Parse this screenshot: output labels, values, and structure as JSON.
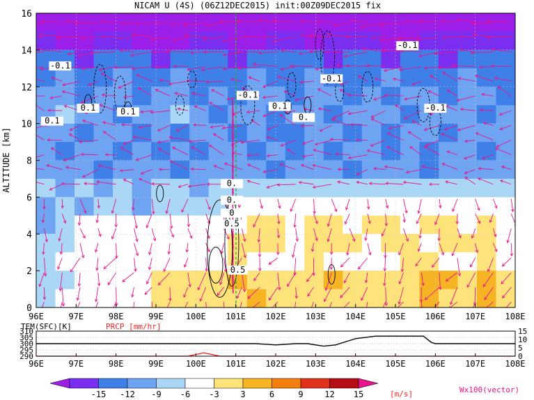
{
  "title": "NICAM U (4S) (06Z12DEC2015) init:00Z09DEC2015 fix",
  "chart_data": [
    {
      "type": "heatmap",
      "panel": "cross-section",
      "variable": "U",
      "ylabel": "ALTITUDE [km]",
      "xlabel": "",
      "x_ticks": [
        "96E",
        "97E",
        "98E",
        "99E",
        "100E",
        "101E",
        "102E",
        "103E",
        "104E",
        "105E",
        "106E",
        "107E",
        "108E"
      ],
      "y_ticks": [
        "0",
        "2",
        "4",
        "6",
        "8",
        "10",
        "12",
        "14",
        "16"
      ],
      "xlim": [
        96,
        108
      ],
      "ylim": [
        0,
        16
      ],
      "vertical_marker_lon": 100.9,
      "contour_labels": [
        "-0.1",
        "-0.1",
        "-0.1",
        "-0.1",
        "0.1",
        "0.1",
        "0.1",
        "0.1",
        "-0.1",
        "0.",
        "0.",
        "0.",
        "0",
        "0.5"
      ],
      "field_rows": [
        {
          "alt": 15.5,
          "values": [
            -15,
            -15,
            -15,
            -15,
            -15,
            -15,
            -15,
            -15,
            -15,
            -15,
            -15,
            -15,
            -15,
            -15,
            -15,
            -15,
            -15,
            -15,
            -15,
            -15,
            -15,
            -15,
            -15,
            -15,
            -15
          ]
        },
        {
          "alt": 14.5,
          "values": [
            -12,
            -15,
            -15,
            -12,
            -12,
            -15,
            -15,
            -15,
            -12,
            -12,
            -15,
            -15,
            -12,
            -12,
            -15,
            -12,
            -12,
            -12,
            -15,
            -15,
            -12,
            -12,
            -12,
            -12,
            -12
          ]
        },
        {
          "alt": 13.5,
          "values": [
            -9,
            -9,
            -12,
            -9,
            -9,
            -9,
            -12,
            -9,
            -9,
            -9,
            -12,
            -9,
            -9,
            -9,
            -9,
            -12,
            -9,
            -9,
            -12,
            -9,
            -9,
            -12,
            -9,
            -9,
            -9
          ]
        },
        {
          "alt": 12.5,
          "values": [
            -9,
            -6,
            -9,
            -9,
            -6,
            -9,
            -9,
            -6,
            -9,
            -9,
            -9,
            -6,
            -9,
            -9,
            -6,
            -9,
            -9,
            -9,
            -6,
            -9,
            -9,
            -9,
            -6,
            -9,
            -9
          ]
        },
        {
          "alt": 11.5,
          "values": [
            -6,
            -6,
            -9,
            -6,
            -6,
            -9,
            -6,
            -6,
            -9,
            -6,
            -9,
            -6,
            -6,
            -9,
            -6,
            -6,
            -9,
            -6,
            -9,
            -6,
            -6,
            -9,
            -6,
            -6,
            -9
          ]
        },
        {
          "alt": 10.5,
          "values": [
            -6,
            -3,
            -6,
            -6,
            -9,
            -6,
            -6,
            -3,
            -6,
            -9,
            -6,
            -6,
            -9,
            -6,
            -6,
            -9,
            -6,
            -6,
            -6,
            -9,
            -6,
            -6,
            -6,
            -9,
            -6
          ]
        },
        {
          "alt": 9.5,
          "values": [
            -6,
            -6,
            -9,
            -6,
            -6,
            -9,
            -6,
            -9,
            -6,
            -6,
            -9,
            -6,
            -9,
            -9,
            -6,
            -6,
            -9,
            -6,
            -9,
            -6,
            -6,
            -9,
            -6,
            -6,
            -6
          ]
        },
        {
          "alt": 8.5,
          "values": [
            -6,
            -9,
            -6,
            -6,
            -9,
            -6,
            -9,
            -6,
            -9,
            -6,
            -6,
            -9,
            -6,
            -9,
            -6,
            -9,
            -6,
            -6,
            -9,
            -6,
            -9,
            -6,
            -6,
            -9,
            -6
          ]
        },
        {
          "alt": 7.5,
          "values": [
            -6,
            -6,
            -6,
            -9,
            -6,
            -6,
            -6,
            -9,
            -6,
            -6,
            -6,
            -6,
            -9,
            -6,
            -6,
            -6,
            -9,
            -6,
            -6,
            -6,
            -9,
            -6,
            -6,
            -6,
            -6
          ]
        },
        {
          "alt": 6.5,
          "values": [
            -3,
            -6,
            -3,
            -6,
            -3,
            -6,
            -3,
            -3,
            -6,
            -3,
            -3,
            -3,
            -3,
            -3,
            -3,
            -3,
            -3,
            -3,
            -3,
            -3,
            -3,
            -3,
            -3,
            -3,
            -3
          ]
        },
        {
          "alt": 5.5,
          "values": [
            -6,
            -3,
            -6,
            -3,
            -3,
            -6,
            -3,
            -3,
            -3,
            -3,
            0,
            0,
            0,
            0,
            0,
            0,
            0,
            0,
            0,
            0,
            0,
            0,
            0,
            0,
            0
          ]
        },
        {
          "alt": 4.5,
          "values": [
            -6,
            -3,
            0,
            0,
            0,
            0,
            0,
            0,
            0,
            0,
            0,
            3,
            3,
            0,
            3,
            3,
            0,
            3,
            3,
            0,
            3,
            3,
            0,
            3,
            0
          ]
        },
        {
          "alt": 3.5,
          "values": [
            -3,
            -3,
            0,
            0,
            0,
            0,
            0,
            0,
            0,
            0,
            3,
            3,
            3,
            0,
            3,
            3,
            3,
            0,
            3,
            3,
            0,
            3,
            3,
            3,
            0
          ]
        },
        {
          "alt": 2.5,
          "values": [
            -3,
            0,
            0,
            0,
            0,
            0,
            0,
            0,
            0,
            0,
            3,
            0,
            0,
            0,
            3,
            0,
            0,
            0,
            0,
            3,
            3,
            0,
            0,
            3,
            0
          ]
        },
        {
          "alt": 1.5,
          "values": [
            -3,
            -3,
            0,
            0,
            0,
            0,
            3,
            3,
            3,
            3,
            6,
            3,
            3,
            3,
            3,
            6,
            3,
            3,
            3,
            3,
            6,
            6,
            3,
            6,
            3
          ]
        },
        {
          "alt": 0.5,
          "values": [
            -3,
            0,
            0,
            0,
            0,
            0,
            3,
            3,
            3,
            3,
            3,
            6,
            3,
            3,
            3,
            3,
            3,
            3,
            3,
            3,
            6,
            3,
            3,
            6,
            3
          ]
        }
      ]
    },
    {
      "type": "line",
      "panel": "surface",
      "series": [
        {
          "name": "TEM(SFC)[K]",
          "color": "#000000",
          "x": [
            96,
            97,
            98,
            99,
            100,
            101,
            101.5,
            102,
            102.5,
            102.8,
            103,
            103.2,
            103.5,
            104,
            104.5,
            105,
            105.5,
            105.7,
            105.9,
            106,
            106.5,
            107,
            108
          ],
          "values": [
            300,
            300,
            300,
            300,
            300,
            300,
            300,
            299,
            300,
            300,
            299,
            298,
            299,
            304,
            306,
            306,
            306,
            306,
            301,
            300,
            300,
            300,
            300
          ]
        },
        {
          "name": "PRCP [mm/hr]",
          "color": "#ff0000",
          "x": [
            96,
            97,
            98,
            99,
            99.8,
            100,
            100.2,
            100.4,
            100.6,
            101,
            108
          ],
          "values": [
            0,
            0,
            0,
            0,
            0,
            1,
            2,
            1,
            0,
            0,
            0
          ]
        }
      ],
      "y_left_ticks": [
        "290",
        "295",
        "300",
        "305",
        "310"
      ],
      "y_right_ticks": [
        "0",
        "5",
        "10",
        "15"
      ],
      "x_ticks": [
        "96E",
        "97E",
        "98E",
        "99E",
        "100E",
        "101E",
        "102E",
        "103E",
        "104E",
        "105E",
        "106E",
        "107E",
        "108E"
      ],
      "y_left_range": [
        290,
        310
      ],
      "y_right_range": [
        0,
        15
      ]
    }
  ],
  "colorbar": {
    "ticks": [
      "-15",
      "-12",
      "-9",
      "-6",
      "-3",
      "3",
      "6",
      "9",
      "12",
      "15"
    ],
    "unit": "[m/s]",
    "bins": [
      {
        "label": "<-15",
        "color": "#9b1fe8"
      },
      {
        "label": "-15..-12",
        "color": "#7a2ff0"
      },
      {
        "label": "-12..-9",
        "color": "#3e7fe8"
      },
      {
        "label": "-9..-6",
        "color": "#6ea4f2"
      },
      {
        "label": "-6..-3",
        "color": "#a9d7f5"
      },
      {
        "label": "-3..3",
        "color": "#ffffff"
      },
      {
        "label": "3..6",
        "color": "#fde37a"
      },
      {
        "label": "6..9",
        "color": "#f6b324"
      },
      {
        "label": "9..12",
        "color": "#f47e10"
      },
      {
        "label": "12..15",
        "color": "#e0321a"
      },
      {
        "label": "15..",
        "color": "#b50d14"
      },
      {
        "label": ">",
        "color": "#e8148a"
      }
    ]
  },
  "vector_label": "Wx100(vector)"
}
